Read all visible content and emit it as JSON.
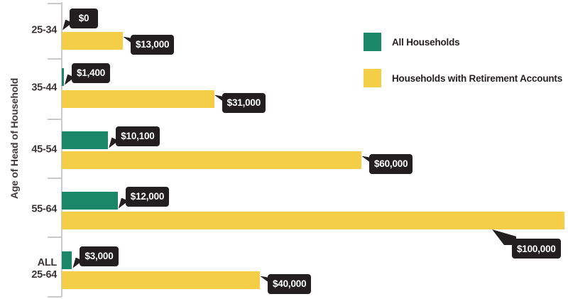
{
  "chart_data": {
    "type": "bar",
    "orientation": "horizontal",
    "ylabel": "Age of Head of Household",
    "xlim": [
      0,
      100000
    ],
    "grid": false,
    "legend_position": "top-right",
    "legend": [
      {
        "name": "All Households",
        "color": "#1b8769"
      },
      {
        "name": "Households with Retirement Accounts",
        "color": "#f3ce46"
      }
    ],
    "groups": [
      {
        "category": "25-34",
        "all": {
          "value": 0,
          "label": "$0"
        },
        "retirement": {
          "value": 13000,
          "label": "$13,000"
        }
      },
      {
        "category": "35-44",
        "all": {
          "value": 1400,
          "label": "$1,400"
        },
        "retirement": {
          "value": 31000,
          "label": "$31,000"
        }
      },
      {
        "category": "45-54",
        "all": {
          "value": 10100,
          "label": "$10,100"
        },
        "retirement": {
          "value": 60000,
          "label": "$60,000"
        }
      },
      {
        "category": "55-64",
        "all": {
          "value": 12000,
          "label": "$12,000"
        },
        "retirement": {
          "value": 100000,
          "label": "$100,000"
        }
      },
      {
        "category": "ALL\n25-64",
        "all": {
          "value": 3000,
          "label": "$3,000"
        },
        "retirement": {
          "value": 40000,
          "label": "$40,000"
        }
      }
    ],
    "colors": {
      "callout_bg": "#231f20",
      "callout_text": "#ffffff",
      "axis_line": "#cbc9c9",
      "label_text": "#3a3637"
    }
  }
}
